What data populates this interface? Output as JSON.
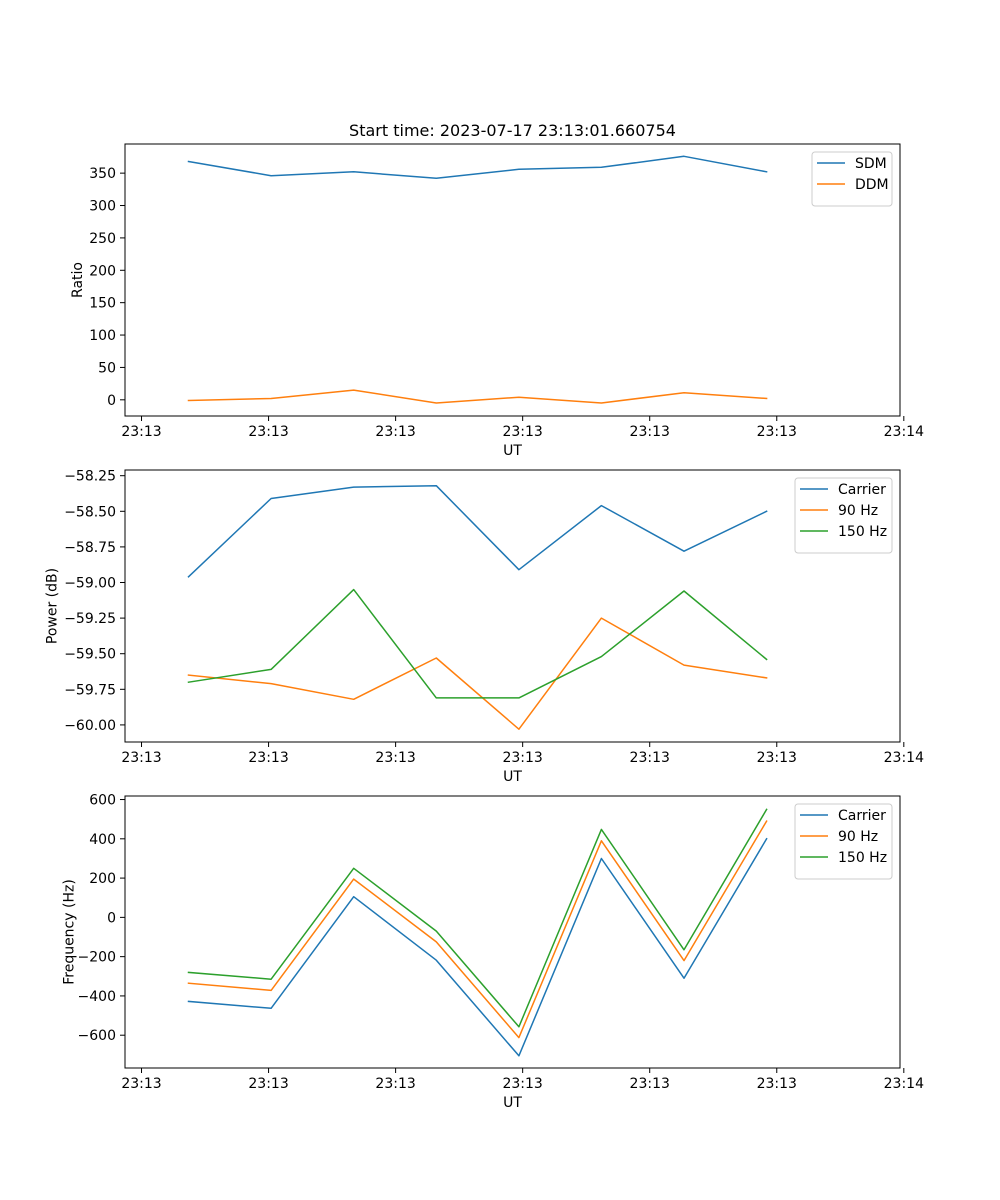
{
  "figure": {
    "title": "Start time: 2023-07-17 23:13:01.660754"
  },
  "colors": {
    "blue": "#1f77b4",
    "orange": "#ff7f0e",
    "green": "#2ca02c"
  },
  "chart_data": [
    {
      "type": "line",
      "title": "Start time: 2023-07-17 23:13:01.660754",
      "xlabel": "UT",
      "ylabel": "Ratio",
      "x": [
        1.0,
        1.65,
        2.3,
        2.95,
        3.6,
        4.25,
        4.9,
        5.55
      ],
      "xlim": [
        0.5,
        6.6
      ],
      "xticks": [
        0.63,
        1.63,
        2.63,
        3.63,
        4.63,
        5.63,
        6.63
      ],
      "xtick_labels": [
        "23:13",
        "23:13",
        "23:13",
        "23:13",
        "23:13",
        "23:13",
        "23:14"
      ],
      "ylim": [
        -25,
        395
      ],
      "yticks": [
        0,
        50,
        100,
        150,
        200,
        250,
        300,
        350
      ],
      "ytick_labels": [
        "0",
        "50",
        "100",
        "150",
        "200",
        "250",
        "300",
        "350"
      ],
      "legend_position": "top-right",
      "series": [
        {
          "name": "SDM",
          "color": "#1f77b4",
          "values": [
            368,
            346,
            352,
            342,
            356,
            359,
            376,
            352
          ]
        },
        {
          "name": "DDM",
          "color": "#ff7f0e",
          "values": [
            -1,
            2,
            15,
            -5,
            4,
            -5,
            11,
            2
          ]
        }
      ]
    },
    {
      "type": "line",
      "xlabel": "UT",
      "ylabel": "Power (dB)",
      "x": [
        1.0,
        1.65,
        2.3,
        2.95,
        3.6,
        4.25,
        4.9,
        5.55
      ],
      "xlim": [
        0.5,
        6.6
      ],
      "xticks": [
        0.63,
        1.63,
        2.63,
        3.63,
        4.63,
        5.63,
        6.63
      ],
      "xtick_labels": [
        "23:13",
        "23:13",
        "23:13",
        "23:13",
        "23:13",
        "23:13",
        "23:14"
      ],
      "ylim": [
        -60.12,
        -58.21
      ],
      "yticks": [
        -60.0,
        -59.75,
        -59.5,
        -59.25,
        -59.0,
        -58.75,
        -58.5,
        -58.25
      ],
      "ytick_labels": [
        "−60.00",
        "−59.75",
        "−59.50",
        "−59.25",
        "−59.00",
        "−58.75",
        "−58.50",
        "−58.25"
      ],
      "legend_position": "top-right",
      "series": [
        {
          "name": "Carrier",
          "color": "#1f77b4",
          "values": [
            -58.96,
            -58.41,
            -58.33,
            -58.32,
            -58.91,
            -58.46,
            -58.78,
            -58.5
          ]
        },
        {
          "name": "90 Hz",
          "color": "#ff7f0e",
          "values": [
            -59.65,
            -59.71,
            -59.82,
            -59.53,
            -60.03,
            -59.25,
            -59.58,
            -59.67
          ]
        },
        {
          "name": "150 Hz",
          "color": "#2ca02c",
          "values": [
            -59.7,
            -59.61,
            -59.05,
            -59.81,
            -59.81,
            -59.52,
            -59.06,
            -59.54
          ]
        }
      ]
    },
    {
      "type": "line",
      "xlabel": "UT",
      "ylabel": "Frequency (Hz)",
      "x": [
        1.0,
        1.65,
        2.3,
        2.95,
        3.6,
        4.25,
        4.9,
        5.55
      ],
      "xlim": [
        0.5,
        6.6
      ],
      "xticks": [
        0.63,
        1.63,
        2.63,
        3.63,
        4.63,
        5.63,
        6.63
      ],
      "xtick_labels": [
        "23:13",
        "23:13",
        "23:13",
        "23:13",
        "23:13",
        "23:13",
        "23:14"
      ],
      "ylim": [
        -767,
        618
      ],
      "yticks": [
        -600,
        -400,
        -200,
        0,
        200,
        400,
        600
      ],
      "ytick_labels": [
        "−600",
        "−400",
        "−200",
        "0",
        "200",
        "400",
        "600"
      ],
      "legend_position": "top-right",
      "series": [
        {
          "name": "Carrier",
          "color": "#1f77b4",
          "values": [
            -428,
            -463,
            105,
            -218,
            -705,
            300,
            -310,
            400
          ]
        },
        {
          "name": "90 Hz",
          "color": "#ff7f0e",
          "values": [
            -335,
            -372,
            195,
            -125,
            -612,
            390,
            -220,
            490
          ]
        },
        {
          "name": "150 Hz",
          "color": "#2ca02c",
          "values": [
            -280,
            -315,
            250,
            -70,
            -557,
            448,
            -165,
            550
          ]
        }
      ]
    }
  ]
}
